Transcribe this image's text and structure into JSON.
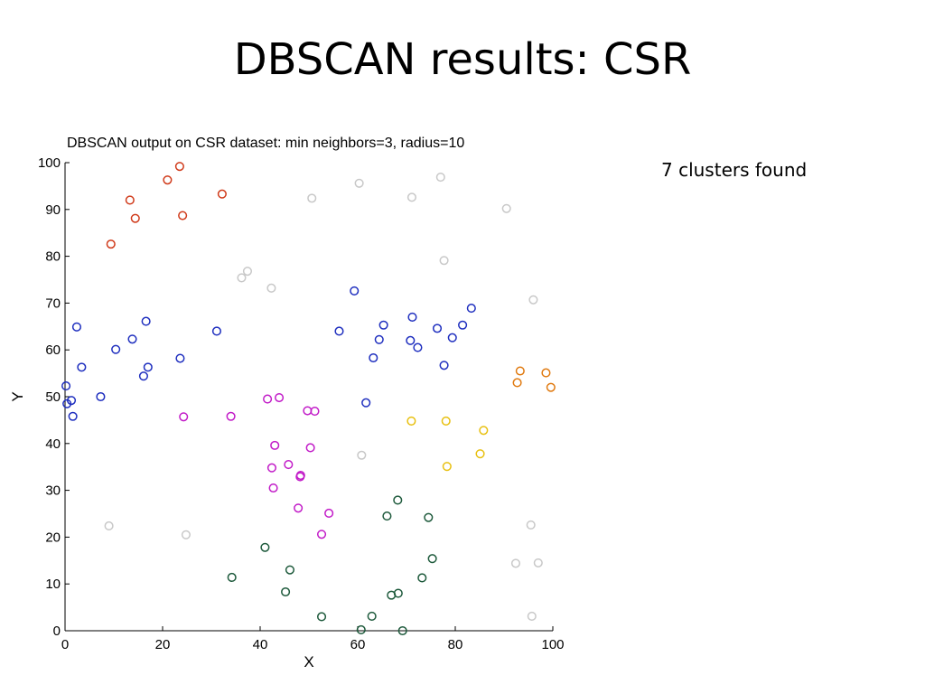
{
  "slide": {
    "title": "DBSCAN results: CSR",
    "note": "7 clusters found"
  },
  "chart_data": {
    "type": "scatter",
    "title": "DBSCAN output on CSR dataset: min neighbors=3, radius=10",
    "xlabel": "X",
    "ylabel": "Y",
    "xlim": [
      0,
      100
    ],
    "ylim": [
      0,
      100
    ],
    "xticks": [
      0,
      20,
      40,
      60,
      80,
      100
    ],
    "yticks": [
      0,
      10,
      20,
      30,
      40,
      50,
      60,
      70,
      80,
      90,
      100
    ],
    "grid": false,
    "marker": "open-circle",
    "series": [
      {
        "color": "#d03a1a",
        "points": [
          [
            23.5,
            99.2
          ],
          [
            21.0,
            96.3
          ],
          [
            13.3,
            92.0
          ],
          [
            32.2,
            93.3
          ],
          [
            14.4,
            88.1
          ],
          [
            24.1,
            88.7
          ],
          [
            9.4,
            82.6
          ]
        ]
      },
      {
        "color": "#1f2fbf",
        "points": [
          [
            59.3,
            72.6
          ],
          [
            83.3,
            68.9
          ],
          [
            71.2,
            67.0
          ],
          [
            2.4,
            64.9
          ],
          [
            16.6,
            66.1
          ],
          [
            65.3,
            65.3
          ],
          [
            76.3,
            64.6
          ],
          [
            81.5,
            65.3
          ],
          [
            13.8,
            62.3
          ],
          [
            31.1,
            64.0
          ],
          [
            56.2,
            64.0
          ],
          [
            64.4,
            62.2
          ],
          [
            70.8,
            62.0
          ],
          [
            79.4,
            62.6
          ],
          [
            10.4,
            60.1
          ],
          [
            72.3,
            60.5
          ],
          [
            23.6,
            58.2
          ],
          [
            63.2,
            58.3
          ],
          [
            3.4,
            56.3
          ],
          [
            17.0,
            56.3
          ],
          [
            77.7,
            56.7
          ],
          [
            16.1,
            54.4
          ],
          [
            0.2,
            52.3
          ],
          [
            7.3,
            50.0
          ],
          [
            1.3,
            49.2
          ],
          [
            61.7,
            48.7
          ],
          [
            0.4,
            48.5
          ],
          [
            1.6,
            45.8
          ]
        ]
      },
      {
        "color": "#c21cc8",
        "points": [
          [
            41.5,
            49.5
          ],
          [
            43.9,
            49.8
          ],
          [
            49.7,
            47.0
          ],
          [
            51.2,
            46.9
          ],
          [
            24.3,
            45.7
          ],
          [
            34.0,
            45.8
          ],
          [
            43.0,
            39.6
          ],
          [
            50.3,
            39.1
          ],
          [
            45.8,
            35.5
          ],
          [
            42.4,
            34.8
          ],
          [
            48.3,
            33.2
          ],
          [
            48.2,
            32.9
          ],
          [
            42.7,
            30.5
          ],
          [
            47.8,
            26.2
          ],
          [
            54.1,
            25.1
          ],
          [
            52.6,
            20.6
          ]
        ]
      },
      {
        "color": "#e8c010",
        "points": [
          [
            71.0,
            44.8
          ],
          [
            78.1,
            44.8
          ],
          [
            85.8,
            42.8
          ],
          [
            85.1,
            37.8
          ],
          [
            78.3,
            35.1
          ]
        ]
      },
      {
        "color": "#e07a10",
        "points": [
          [
            93.3,
            55.5
          ],
          [
            98.6,
            55.1
          ],
          [
            92.7,
            53.0
          ],
          [
            99.6,
            52.0
          ]
        ]
      },
      {
        "color": "#1e5a3c",
        "points": [
          [
            68.2,
            27.9
          ],
          [
            66.0,
            24.5
          ],
          [
            74.5,
            24.2
          ],
          [
            41.0,
            17.8
          ],
          [
            75.3,
            15.4
          ],
          [
            46.1,
            13.0
          ],
          [
            34.2,
            11.4
          ],
          [
            73.2,
            11.3
          ],
          [
            45.2,
            8.3
          ],
          [
            66.9,
            7.6
          ],
          [
            68.3,
            8.0
          ],
          [
            52.6,
            3.0
          ],
          [
            62.9,
            3.1
          ],
          [
            60.7,
            0.2
          ],
          [
            69.2,
            0.0
          ]
        ]
      },
      {
        "color": "#c8c8c8",
        "points": [
          [
            77.0,
            96.9
          ],
          [
            60.3,
            95.6
          ],
          [
            50.6,
            92.4
          ],
          [
            71.1,
            92.6
          ],
          [
            90.5,
            90.2
          ],
          [
            77.7,
            79.1
          ],
          [
            37.4,
            76.8
          ],
          [
            36.2,
            75.4
          ],
          [
            42.3,
            73.2
          ],
          [
            96.0,
            70.7
          ],
          [
            60.8,
            37.5
          ],
          [
            9.0,
            22.4
          ],
          [
            95.5,
            22.6
          ],
          [
            24.8,
            20.5
          ],
          [
            92.4,
            14.4
          ],
          [
            97.0,
            14.5
          ],
          [
            95.7,
            3.1
          ]
        ]
      }
    ]
  }
}
